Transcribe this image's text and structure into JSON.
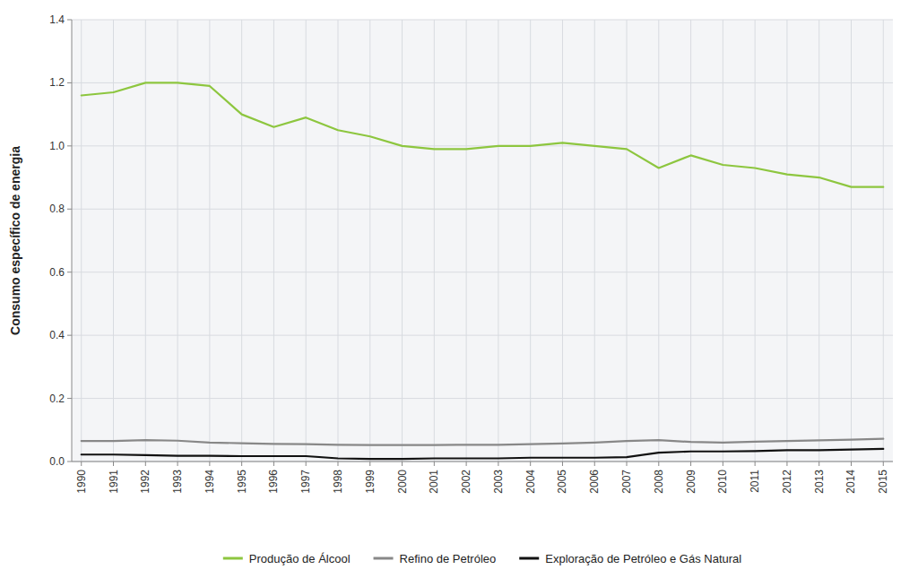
{
  "chart_data": {
    "type": "line",
    "ylabel": "Consumo específico de energia",
    "x": [
      1990,
      1991,
      1992,
      1993,
      1994,
      1995,
      1996,
      1997,
      1998,
      1999,
      2000,
      2001,
      2002,
      2003,
      2004,
      2005,
      2006,
      2007,
      2008,
      2009,
      2010,
      2011,
      2012,
      2013,
      2014,
      2015
    ],
    "series": [
      {
        "name": "Produção de Álcool",
        "color": "#8dc63f",
        "values": [
          1.16,
          1.17,
          1.2,
          1.2,
          1.19,
          1.1,
          1.06,
          1.09,
          1.05,
          1.03,
          1.0,
          0.99,
          0.99,
          1.0,
          1.0,
          1.01,
          1.0,
          0.99,
          0.93,
          0.97,
          0.94,
          0.93,
          0.91,
          0.9,
          0.87,
          0.87
        ]
      },
      {
        "name": "Refino de Petróleo",
        "color": "#888888",
        "values": [
          0.065,
          0.065,
          0.068,
          0.066,
          0.06,
          0.058,
          0.056,
          0.055,
          0.053,
          0.052,
          0.052,
          0.052,
          0.053,
          0.053,
          0.055,
          0.057,
          0.06,
          0.065,
          0.068,
          0.062,
          0.06,
          0.063,
          0.065,
          0.067,
          0.069,
          0.072
        ]
      },
      {
        "name": "Exploração de Petróleo e Gás Natural",
        "color": "#111111",
        "values": [
          0.022,
          0.022,
          0.02,
          0.018,
          0.018,
          0.017,
          0.017,
          0.017,
          0.01,
          0.008,
          0.008,
          0.01,
          0.01,
          0.01,
          0.012,
          0.012,
          0.012,
          0.014,
          0.028,
          0.032,
          0.032,
          0.033,
          0.036,
          0.036,
          0.038,
          0.04
        ]
      }
    ],
    "xlim": [
      1989.7,
      2015.3
    ],
    "xticks": [
      1990,
      1991,
      1992,
      1993,
      1994,
      1995,
      1996,
      1997,
      1998,
      1999,
      2000,
      2001,
      2002,
      2003,
      2004,
      2005,
      2006,
      2007,
      2008,
      2009,
      2010,
      2011,
      2012,
      2013,
      2014,
      2015
    ],
    "ylim": [
      0.0,
      1.4
    ],
    "yticks": [
      {
        "value": 0.0,
        "label": "0.0"
      },
      0.2,
      0.4,
      0.6,
      0.8,
      {
        "value": 1.0,
        "label": "1.0"
      },
      1.2,
      1.4
    ],
    "grid": true,
    "legend": "bottom"
  }
}
